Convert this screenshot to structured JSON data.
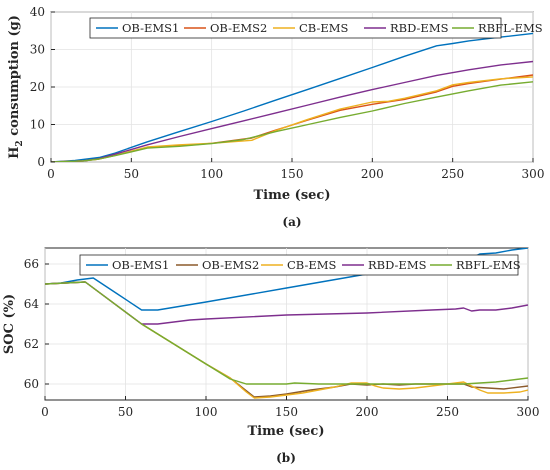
{
  "chart_data": [
    {
      "type": "line",
      "caption": "(a)",
      "xlabel": "Time (sec)",
      "ylabel_main": "H",
      "ylabel_sub": "2",
      "ylabel_rest": " consumption (g)",
      "xlim": [
        0,
        300
      ],
      "ylim": [
        0,
        40
      ],
      "xticks": [
        0,
        50,
        100,
        150,
        200,
        250,
        300
      ],
      "yticks": [
        0,
        10,
        20,
        30,
        40
      ],
      "grid": true,
      "legend_position": "top",
      "series": [
        {
          "name": "OB-EMS1",
          "color": "#0072BD",
          "x": [
            0,
            15,
            30,
            40,
            60,
            80,
            100,
            120,
            140,
            160,
            180,
            200,
            220,
            240,
            250,
            260,
            280,
            300
          ],
          "y": [
            0,
            0.4,
            1.2,
            2.4,
            5.4,
            8.1,
            10.8,
            13.6,
            16.5,
            19.4,
            22.3,
            25.2,
            28.2,
            31.0,
            31.6,
            32.3,
            33.3,
            34.3
          ]
        },
        {
          "name": "OB-EMS2",
          "color": "#D95319",
          "x": [
            0,
            20,
            30,
            40,
            60,
            80,
            100,
            125,
            140,
            160,
            180,
            200,
            220,
            240,
            250,
            260,
            280,
            300
          ],
          "y": [
            0,
            0.3,
            0.8,
            1.8,
            3.9,
            4.3,
            5.0,
            6.4,
            8.5,
            11.2,
            13.8,
            15.4,
            16.7,
            18.7,
            20.2,
            20.9,
            22.1,
            23.2
          ]
        },
        {
          "name": "CB-EMS",
          "color": "#EDB120",
          "x": [
            0,
            20,
            30,
            40,
            60,
            80,
            100,
            125,
            140,
            160,
            180,
            200,
            210,
            220,
            240,
            250,
            260,
            280,
            300
          ],
          "y": [
            0,
            0.3,
            0.8,
            1.8,
            4.0,
            4.6,
            5.0,
            5.8,
            8.4,
            11.4,
            14.1,
            16.0,
            16.2,
            17.0,
            19.0,
            20.6,
            21.2,
            22.2,
            22.7
          ]
        },
        {
          "name": "RBD-EMS",
          "color": "#7E2F8E",
          "x": [
            0,
            20,
            30,
            40,
            60,
            80,
            100,
            120,
            140,
            160,
            180,
            200,
            220,
            240,
            260,
            280,
            300
          ],
          "y": [
            0,
            0.3,
            0.9,
            2.1,
            4.6,
            6.8,
            8.9,
            11.0,
            13.1,
            15.2,
            17.3,
            19.3,
            21.2,
            23.1,
            24.6,
            25.9,
            26.8
          ]
        },
        {
          "name": "RBFL-EMS",
          "color": "#77AC30",
          "x": [
            0,
            20,
            30,
            40,
            60,
            80,
            100,
            120,
            140,
            160,
            180,
            200,
            220,
            240,
            260,
            280,
            300
          ],
          "y": [
            0,
            0.3,
            0.8,
            1.7,
            3.7,
            4.2,
            4.9,
            6.0,
            8.1,
            10.0,
            11.9,
            13.6,
            15.6,
            17.3,
            19.0,
            20.5,
            21.4
          ]
        }
      ]
    },
    {
      "type": "line",
      "caption": "(b)",
      "xlabel": "Time (sec)",
      "ylabel": "SOC (%)",
      "xlim": [
        0,
        300
      ],
      "ylim": [
        59.2,
        66.8
      ],
      "xticks": [
        0,
        50,
        100,
        150,
        200,
        250,
        300
      ],
      "yticks": [
        60,
        62,
        64,
        66
      ],
      "grid": true,
      "legend_position": "top",
      "series": [
        {
          "name": "OB-EMS1",
          "color": "#0072BD",
          "x": [
            0,
            10,
            20,
            30,
            45,
            60,
            70,
            100,
            150,
            200,
            250,
            265,
            270,
            280,
            290,
            300
          ],
          "y": [
            65.0,
            65.05,
            65.2,
            65.3,
            64.5,
            63.7,
            63.7,
            64.1,
            64.8,
            65.5,
            66.2,
            66.3,
            66.5,
            66.55,
            66.7,
            66.8
          ]
        },
        {
          "name": "OB-EMS2",
          "color": "#8B5A2B",
          "x": [
            0,
            25,
            60,
            100,
            115,
            130,
            140,
            150,
            165,
            180,
            190,
            200,
            210,
            220,
            230,
            240,
            250,
            260,
            265,
            275,
            285,
            300
          ],
          "y": [
            65.0,
            65.1,
            63.0,
            61.0,
            60.3,
            59.35,
            59.4,
            59.5,
            59.7,
            59.85,
            60.0,
            59.95,
            60.0,
            59.95,
            60.0,
            60.0,
            60.0,
            60.0,
            59.85,
            59.8,
            59.75,
            59.9
          ]
        },
        {
          "name": "CB-EMS",
          "color": "#EDB120",
          "x": [
            0,
            25,
            60,
            100,
            115,
            125,
            130,
            140,
            150,
            160,
            170,
            180,
            190,
            200,
            205,
            210,
            220,
            230,
            240,
            250,
            260,
            265,
            270,
            275,
            285,
            295,
            300
          ],
          "y": [
            65.0,
            65.1,
            63.0,
            61.0,
            60.3,
            59.6,
            59.3,
            59.35,
            59.45,
            59.55,
            59.7,
            59.85,
            60.05,
            60.05,
            59.9,
            59.8,
            59.75,
            59.8,
            59.9,
            60.0,
            60.1,
            59.9,
            59.7,
            59.55,
            59.55,
            59.6,
            59.7
          ]
        },
        {
          "name": "RBD-EMS",
          "color": "#7E2F8E",
          "x": [
            0,
            25,
            60,
            70,
            80,
            90,
            100,
            150,
            200,
            240,
            255,
            260,
            265,
            270,
            280,
            290,
            300
          ],
          "y": [
            65.0,
            65.1,
            63.0,
            63.0,
            63.1,
            63.2,
            63.25,
            63.45,
            63.55,
            63.7,
            63.75,
            63.8,
            63.65,
            63.7,
            63.7,
            63.8,
            63.95
          ]
        },
        {
          "name": "RBFL-EMS",
          "color": "#77AC30",
          "x": [
            0,
            25,
            60,
            100,
            115,
            125,
            140,
            150,
            155,
            170,
            190,
            200,
            220,
            240,
            250,
            260,
            270,
            280,
            300
          ],
          "y": [
            65.0,
            65.1,
            63.0,
            61.0,
            60.25,
            60.0,
            60.0,
            60.0,
            60.05,
            60.0,
            60.0,
            60.0,
            60.0,
            60.0,
            60.0,
            60.0,
            60.05,
            60.1,
            60.3
          ]
        }
      ]
    }
  ]
}
